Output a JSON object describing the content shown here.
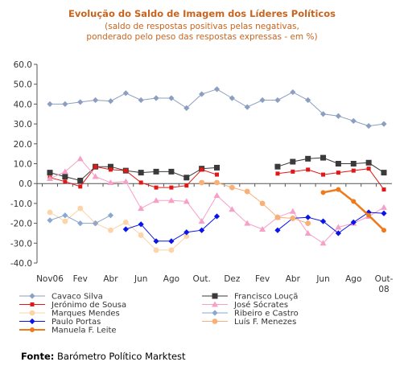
{
  "chart_data": {
    "type": "line",
    "title": "Evolução do Saldo  de Imagem dos Líderes Políticos",
    "subtitle_lines": [
      "(saldo de respostas positivas pelas negativas,",
      "ponderado pelo peso das respostas expressas - em %)"
    ],
    "ylim": [
      -40,
      60
    ],
    "y_ticks": [
      "60.0",
      "50.0",
      "40.0",
      "30.0",
      "20.0",
      "10.0",
      "0.0",
      "-10.0",
      "-20.0",
      "-30.0",
      "-40.0"
    ],
    "x_tick_labels": [
      {
        "index": 0,
        "lines": [
          "Nov06"
        ]
      },
      {
        "index": 4,
        "lines": [
          "Fev"
        ]
      },
      {
        "index": 8,
        "lines": [
          "Abr"
        ]
      },
      {
        "index": 12,
        "lines": [
          "Jun"
        ]
      },
      {
        "index": 16,
        "lines": [
          "Ago"
        ]
      },
      {
        "index": 20,
        "lines": [
          "Out."
        ]
      },
      {
        "index": 24,
        "lines": [
          "Dez"
        ]
      },
      {
        "index": 28,
        "lines": [
          "Fev"
        ]
      },
      {
        "index": 32,
        "lines": [
          "Abr"
        ]
      },
      {
        "index": 36,
        "lines": [
          "Jun"
        ]
      },
      {
        "index": 40,
        "lines": [
          "Ago"
        ]
      },
      {
        "index": 44,
        "lines": [
          "Out-",
          "08"
        ]
      }
    ],
    "n_points": 45,
    "series": [
      {
        "name": "Cavaco Silva",
        "color": "#8c9fc0",
        "marker": "diamond",
        "lineWidth": 1,
        "values": [
          40,
          null,
          40,
          null,
          41,
          null,
          42,
          null,
          41.5,
          null,
          45.5,
          null,
          42,
          null,
          43,
          null,
          43,
          null,
          38,
          null,
          45,
          null,
          47.5,
          null,
          43,
          null,
          38.5,
          null,
          42,
          null,
          42,
          null,
          46,
          null,
          42,
          null,
          35,
          null,
          34,
          null,
          31.5,
          null,
          29,
          null,
          30
        ]
      },
      {
        "name": "Francisco Louçã",
        "color": "#3a3a3a",
        "marker": "square",
        "lineWidth": 1,
        "values": [
          5.5,
          null,
          3.5,
          null,
          1.5,
          null,
          8.5,
          null,
          8.5,
          null,
          6.5,
          null,
          5.5,
          null,
          6,
          null,
          6,
          null,
          3,
          null,
          7.5,
          null,
          8,
          null,
          null,
          null,
          null,
          null,
          null,
          null,
          8.5,
          null,
          11,
          null,
          12.5,
          null,
          13,
          null,
          10,
          null,
          10,
          null,
          10.5,
          null,
          5.5
        ]
      },
      {
        "name": "Jerónimo de Sousa",
        "color": "#e01818",
        "marker": "square-small",
        "lineWidth": 1,
        "values": [
          3,
          null,
          1,
          null,
          -1.5,
          null,
          8.5,
          null,
          7,
          null,
          6.5,
          null,
          0.5,
          null,
          -2,
          null,
          -2,
          null,
          -1,
          null,
          7,
          null,
          4.5,
          null,
          null,
          null,
          null,
          null,
          null,
          null,
          5,
          null,
          6,
          null,
          7,
          null,
          4.5,
          null,
          5.5,
          null,
          6.5,
          null,
          7.5,
          null,
          -3
        ]
      },
      {
        "name": "José Sócrates",
        "color": "#f6a0c8",
        "marker": "triangle",
        "lineWidth": 1,
        "values": [
          2.5,
          null,
          6,
          null,
          12.5,
          null,
          3.5,
          null,
          0.5,
          null,
          1,
          null,
          -12.5,
          null,
          -8.5,
          null,
          -8.5,
          null,
          -9,
          null,
          -19,
          null,
          -6,
          null,
          -13,
          null,
          -20,
          null,
          -23,
          null,
          -17,
          null,
          -14,
          null,
          -25,
          null,
          -30,
          null,
          -22,
          null,
          -20,
          null,
          -16.5,
          null,
          -12
        ]
      },
      {
        "name": "Marques Mendes",
        "color": "#fcd4a8",
        "marker": "circle",
        "lineWidth": 1,
        "values": [
          -14.5,
          null,
          -19,
          null,
          -12.5,
          null,
          -20,
          null,
          -23.5,
          null,
          -19.5,
          null,
          -26,
          null,
          -33.5,
          null,
          -33.5,
          null,
          -26.5,
          null,
          null,
          null,
          null,
          null,
          null,
          null,
          null,
          null,
          null,
          null,
          null,
          null,
          null,
          null,
          null,
          null,
          null,
          null,
          null,
          null,
          null,
          null,
          null,
          null,
          null
        ]
      },
      {
        "name": "Ribeiro e Castro",
        "color": "#8aa8d0",
        "marker": "diamond",
        "lineWidth": 1,
        "values": [
          -18.5,
          null,
          -16,
          null,
          -20,
          null,
          -20,
          null,
          -16,
          null,
          null,
          null,
          null,
          null,
          null,
          null,
          null,
          null,
          null,
          null,
          null,
          null,
          null,
          null,
          null,
          null,
          null,
          null,
          null,
          null,
          null,
          null,
          null,
          null,
          null,
          null,
          null,
          null,
          null,
          null,
          null,
          null,
          null,
          null,
          null
        ]
      },
      {
        "name": "Paulo Portas",
        "color": "#0a14e8",
        "marker": "diamond",
        "lineWidth": 1,
        "values": [
          null,
          null,
          null,
          null,
          null,
          null,
          null,
          null,
          null,
          null,
          -23,
          null,
          -20.5,
          null,
          -29,
          null,
          -29,
          null,
          -24.5,
          null,
          -23.5,
          null,
          -16.5,
          null,
          null,
          null,
          null,
          null,
          null,
          null,
          -23.5,
          null,
          -17.5,
          null,
          -17,
          null,
          -19,
          null,
          -25,
          null,
          -19.5,
          null,
          -14.5,
          null,
          -15
        ]
      },
      {
        "name": "Luís F. Menezes",
        "color": "#f8b078",
        "marker": "circle",
        "lineWidth": 1,
        "values": [
          null,
          null,
          null,
          null,
          null,
          null,
          null,
          null,
          null,
          null,
          null,
          null,
          null,
          null,
          null,
          null,
          null,
          null,
          null,
          null,
          0.5,
          null,
          0.5,
          null,
          -2,
          null,
          -4,
          null,
          -10,
          null,
          -17,
          null,
          -17.5,
          null,
          -20,
          null,
          null,
          null,
          null,
          null,
          null,
          null,
          null,
          null,
          null
        ]
      },
      {
        "name": "Manuela F. Leite",
        "color": "#ee7a1c",
        "marker": "circle",
        "lineWidth": 2.5,
        "values": [
          null,
          null,
          null,
          null,
          null,
          null,
          null,
          null,
          null,
          null,
          null,
          null,
          null,
          null,
          null,
          null,
          null,
          null,
          null,
          null,
          null,
          null,
          null,
          null,
          null,
          null,
          null,
          null,
          null,
          null,
          null,
          null,
          null,
          null,
          null,
          null,
          -4.5,
          null,
          -3,
          null,
          -9,
          null,
          -16,
          null,
          -23.5
        ]
      }
    ],
    "legend_position": "bottom",
    "grid": false
  },
  "source": {
    "label": "Fonte:",
    "text": " Barómetro Político Marktest"
  }
}
